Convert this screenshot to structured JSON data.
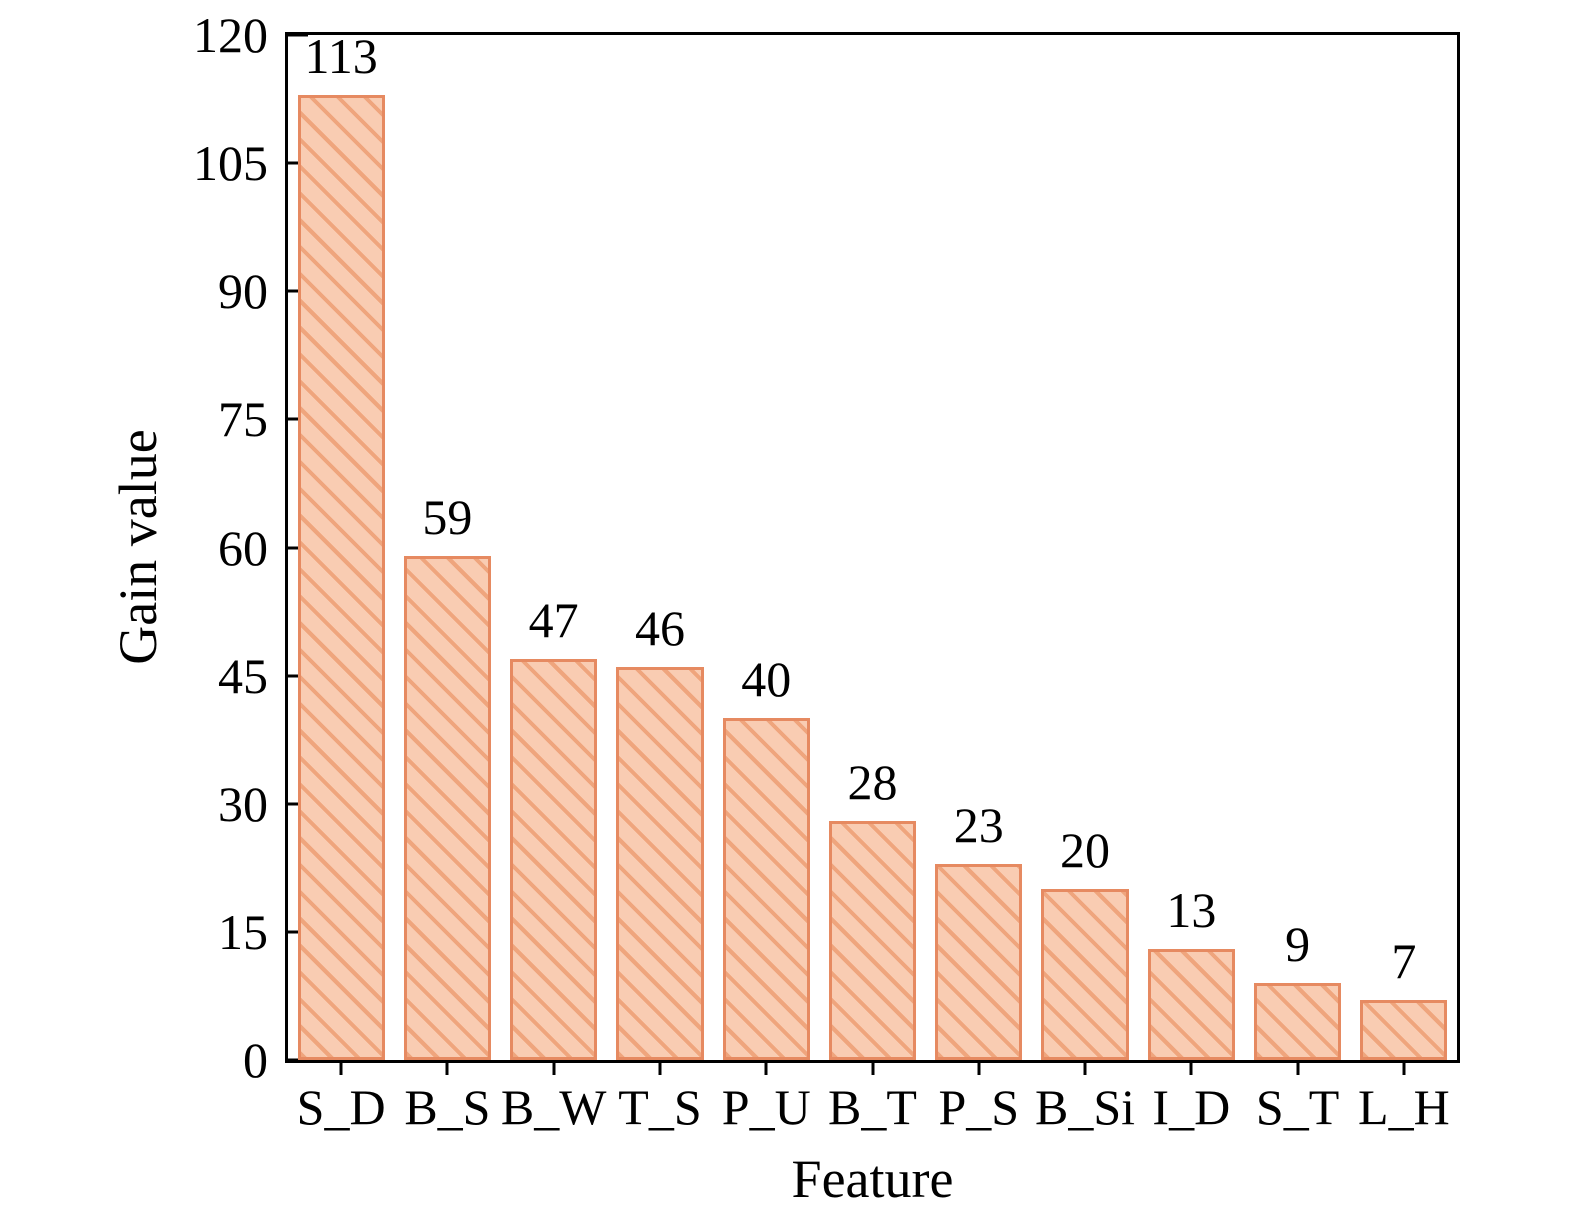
{
  "figure": {
    "ylabel": "Gain value",
    "xlabel": "Feature"
  },
  "chart_data": {
    "type": "bar",
    "categories": [
      "S_D",
      "B_S",
      "B_W",
      "T_S",
      "P_U",
      "B_T",
      "P_S",
      "B_Si",
      "I_D",
      "S_T",
      "L_H"
    ],
    "values": [
      113,
      59,
      47,
      46,
      40,
      28,
      23,
      20,
      13,
      9,
      7
    ],
    "value_labels": [
      "113",
      "59",
      "47",
      "46",
      "40",
      "28",
      "23",
      "20",
      "13",
      "9",
      "7"
    ],
    "title": "",
    "xlabel": "Feature",
    "ylabel": "Gain value",
    "ylim": [
      0,
      120
    ],
    "yticks": [
      0,
      15,
      30,
      45,
      60,
      75,
      90,
      105,
      120
    ],
    "ytick_labels": [
      "0",
      "15",
      "30",
      "45",
      "60",
      "75",
      "90",
      "105",
      "120"
    ],
    "grid": false,
    "legend": null,
    "bar_style": {
      "fill": "#f9ccb2",
      "hatch_color": "#efa57d",
      "hatch_pattern": "diagonal-backslash",
      "edge_color": "#e68a61",
      "axis_color": "#000000"
    }
  }
}
